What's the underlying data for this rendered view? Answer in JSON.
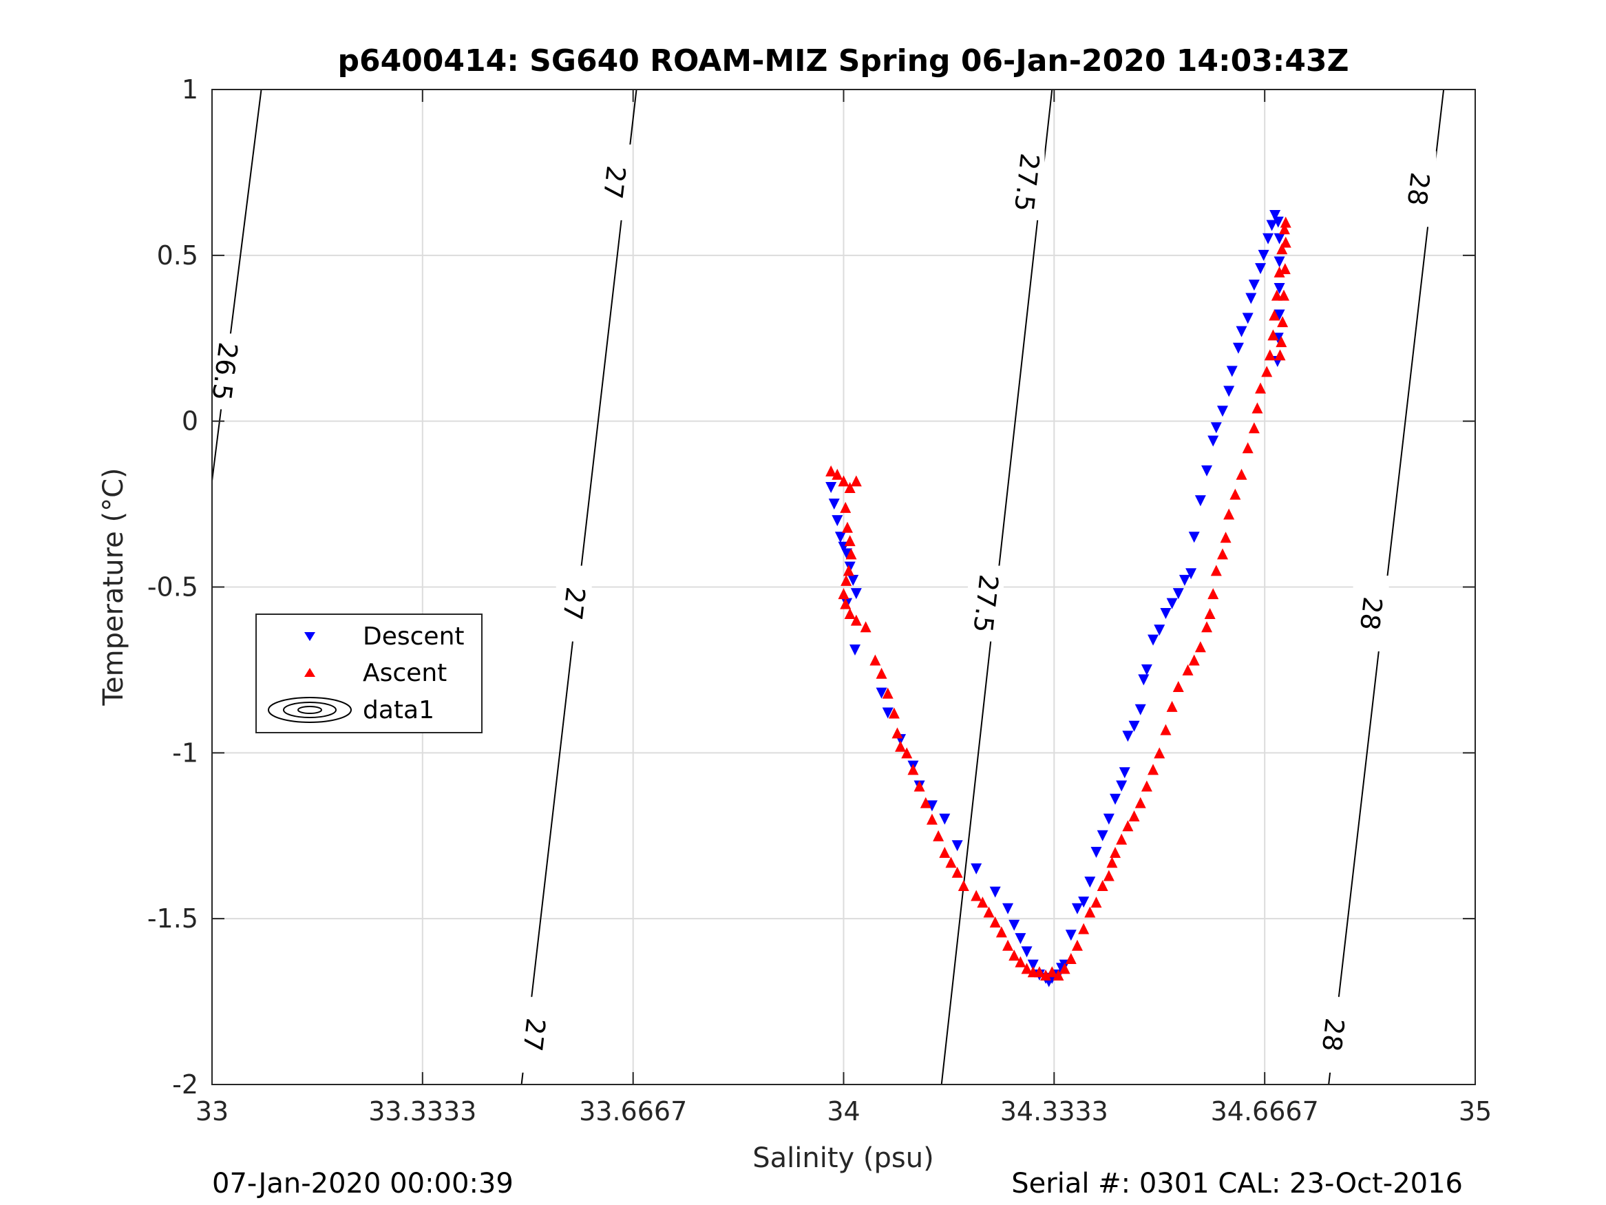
{
  "chart_data": {
    "type": "scatter",
    "title": "p6400414: SG640 ROAM-MIZ Spring 06-Jan-2020 14:03:43Z",
    "xlabel": "Salinity (psu)",
    "ylabel": "Temperature (°C)",
    "xlim": [
      33,
      35
    ],
    "ylim": [
      -2,
      1
    ],
    "xticks": [
      "33",
      "33.3333",
      "33.6667",
      "34",
      "34.3333",
      "34.6667",
      "35"
    ],
    "yticks": [
      "-2",
      "-1.5",
      "-1",
      "-0.5",
      "0",
      "0.5",
      "1"
    ],
    "grid": true,
    "legend": {
      "location": "middle-left",
      "entries": [
        "Descent",
        "Ascent",
        "data1"
      ]
    },
    "series": [
      {
        "name": "Descent",
        "color": "#0000ff",
        "marker": "triangle-down",
        "points": [
          [
            33.98,
            -0.2
          ],
          [
            33.985,
            -0.25
          ],
          [
            33.99,
            -0.3
          ],
          [
            33.995,
            -0.35
          ],
          [
            34.0,
            -0.38
          ],
          [
            34.005,
            -0.4
          ],
          [
            34.01,
            -0.44
          ],
          [
            34.015,
            -0.48
          ],
          [
            34.02,
            -0.52
          ],
          [
            34.005,
            -0.55
          ],
          [
            34.018,
            -0.69
          ],
          [
            34.06,
            -0.82
          ],
          [
            34.07,
            -0.88
          ],
          [
            34.09,
            -0.96
          ],
          [
            34.11,
            -1.04
          ],
          [
            34.12,
            -1.1
          ],
          [
            34.14,
            -1.16
          ],
          [
            34.16,
            -1.2
          ],
          [
            34.18,
            -1.28
          ],
          [
            34.21,
            -1.35
          ],
          [
            34.24,
            -1.42
          ],
          [
            34.26,
            -1.47
          ],
          [
            34.27,
            -1.52
          ],
          [
            34.28,
            -1.56
          ],
          [
            34.29,
            -1.6
          ],
          [
            34.3,
            -1.64
          ],
          [
            34.31,
            -1.67
          ],
          [
            34.32,
            -1.68
          ],
          [
            34.325,
            -1.69
          ],
          [
            34.33,
            -1.68
          ],
          [
            34.34,
            -1.67
          ],
          [
            34.345,
            -1.65
          ],
          [
            34.35,
            -1.64
          ],
          [
            34.36,
            -1.55
          ],
          [
            34.37,
            -1.47
          ],
          [
            34.38,
            -1.45
          ],
          [
            34.39,
            -1.39
          ],
          [
            34.4,
            -1.3
          ],
          [
            34.41,
            -1.25
          ],
          [
            34.42,
            -1.2
          ],
          [
            34.43,
            -1.14
          ],
          [
            34.44,
            -1.1
          ],
          [
            34.445,
            -1.06
          ],
          [
            34.45,
            -0.95
          ],
          [
            34.46,
            -0.92
          ],
          [
            34.47,
            -0.87
          ],
          [
            34.475,
            -0.78
          ],
          [
            34.48,
            -0.75
          ],
          [
            34.49,
            -0.66
          ],
          [
            34.5,
            -0.63
          ],
          [
            34.51,
            -0.58
          ],
          [
            34.52,
            -0.55
          ],
          [
            34.53,
            -0.52
          ],
          [
            34.54,
            -0.48
          ],
          [
            34.55,
            -0.46
          ],
          [
            34.555,
            -0.35
          ],
          [
            34.565,
            -0.24
          ],
          [
            34.575,
            -0.15
          ],
          [
            34.585,
            -0.06
          ],
          [
            34.59,
            -0.02
          ],
          [
            34.6,
            0.03
          ],
          [
            34.61,
            0.09
          ],
          [
            34.615,
            0.15
          ],
          [
            34.625,
            0.22
          ],
          [
            34.63,
            0.27
          ],
          [
            34.64,
            0.31
          ],
          [
            34.645,
            0.37
          ],
          [
            34.65,
            0.41
          ],
          [
            34.66,
            0.46
          ],
          [
            34.665,
            0.5
          ],
          [
            34.672,
            0.55
          ],
          [
            34.678,
            0.59
          ],
          [
            34.683,
            0.62
          ],
          [
            34.688,
            0.6
          ],
          [
            34.69,
            0.55
          ],
          [
            34.69,
            0.48
          ],
          [
            34.69,
            0.4
          ],
          [
            34.69,
            0.32
          ],
          [
            34.688,
            0.25
          ],
          [
            34.687,
            0.18
          ]
        ]
      },
      {
        "name": "Ascent",
        "color": "#ff0000",
        "marker": "triangle-up",
        "points": [
          [
            33.98,
            -0.15
          ],
          [
            33.99,
            -0.16
          ],
          [
            34.0,
            -0.18
          ],
          [
            34.01,
            -0.2
          ],
          [
            34.02,
            -0.18
          ],
          [
            34.003,
            -0.26
          ],
          [
            34.006,
            -0.32
          ],
          [
            34.01,
            -0.36
          ],
          [
            34.012,
            -0.4
          ],
          [
            34.008,
            -0.45
          ],
          [
            34.004,
            -0.48
          ],
          [
            34.0,
            -0.52
          ],
          [
            34.003,
            -0.55
          ],
          [
            34.01,
            -0.58
          ],
          [
            34.02,
            -0.6
          ],
          [
            34.035,
            -0.62
          ],
          [
            34.05,
            -0.72
          ],
          [
            34.06,
            -0.76
          ],
          [
            34.07,
            -0.82
          ],
          [
            34.08,
            -0.88
          ],
          [
            34.085,
            -0.94
          ],
          [
            34.09,
            -0.98
          ],
          [
            34.1,
            -1.0
          ],
          [
            34.11,
            -1.05
          ],
          [
            34.12,
            -1.1
          ],
          [
            34.13,
            -1.15
          ],
          [
            34.14,
            -1.2
          ],
          [
            34.15,
            -1.25
          ],
          [
            34.16,
            -1.3
          ],
          [
            34.17,
            -1.33
          ],
          [
            34.18,
            -1.36
          ],
          [
            34.19,
            -1.4
          ],
          [
            34.21,
            -1.43
          ],
          [
            34.22,
            -1.45
          ],
          [
            34.23,
            -1.48
          ],
          [
            34.24,
            -1.51
          ],
          [
            34.25,
            -1.54
          ],
          [
            34.26,
            -1.58
          ],
          [
            34.27,
            -1.61
          ],
          [
            34.28,
            -1.63
          ],
          [
            34.29,
            -1.65
          ],
          [
            34.3,
            -1.66
          ],
          [
            34.31,
            -1.66
          ],
          [
            34.32,
            -1.67
          ],
          [
            34.33,
            -1.66
          ],
          [
            34.34,
            -1.67
          ],
          [
            34.35,
            -1.65
          ],
          [
            34.36,
            -1.62
          ],
          [
            34.37,
            -1.58
          ],
          [
            34.38,
            -1.53
          ],
          [
            34.39,
            -1.48
          ],
          [
            34.4,
            -1.45
          ],
          [
            34.41,
            -1.4
          ],
          [
            34.42,
            -1.37
          ],
          [
            34.425,
            -1.33
          ],
          [
            34.43,
            -1.3
          ],
          [
            34.44,
            -1.26
          ],
          [
            34.45,
            -1.22
          ],
          [
            34.46,
            -1.19
          ],
          [
            34.47,
            -1.15
          ],
          [
            34.48,
            -1.1
          ],
          [
            34.49,
            -1.05
          ],
          [
            34.5,
            -1.0
          ],
          [
            34.51,
            -0.93
          ],
          [
            34.52,
            -0.86
          ],
          [
            34.53,
            -0.8
          ],
          [
            34.545,
            -0.75
          ],
          [
            34.555,
            -0.72
          ],
          [
            34.565,
            -0.68
          ],
          [
            34.575,
            -0.62
          ],
          [
            34.58,
            -0.58
          ],
          [
            34.585,
            -0.52
          ],
          [
            34.59,
            -0.45
          ],
          [
            34.6,
            -0.4
          ],
          [
            34.605,
            -0.35
          ],
          [
            34.61,
            -0.28
          ],
          [
            34.62,
            -0.22
          ],
          [
            34.63,
            -0.16
          ],
          [
            34.64,
            -0.08
          ],
          [
            34.65,
            -0.02
          ],
          [
            34.655,
            0.04
          ],
          [
            34.66,
            0.1
          ],
          [
            34.67,
            0.15
          ],
          [
            34.675,
            0.2
          ],
          [
            34.68,
            0.26
          ],
          [
            34.682,
            0.32
          ],
          [
            34.686,
            0.38
          ],
          [
            34.69,
            0.45
          ],
          [
            34.694,
            0.52
          ],
          [
            34.698,
            0.58
          ],
          [
            34.7,
            0.6
          ],
          [
            34.7,
            0.54
          ],
          [
            34.699,
            0.46
          ],
          [
            34.697,
            0.38
          ],
          [
            34.695,
            0.3
          ],
          [
            34.693,
            0.24
          ],
          [
            34.691,
            0.2
          ]
        ]
      }
    ],
    "contour_labels": [
      "26.5",
      "27",
      "27",
      "27",
      "27.5",
      "27.5",
      "28",
      "28",
      "28"
    ]
  },
  "footer": {
    "left": "07-Jan-2020 00:00:39",
    "right": "Serial #: 0301  CAL: 23-Oct-2016"
  }
}
